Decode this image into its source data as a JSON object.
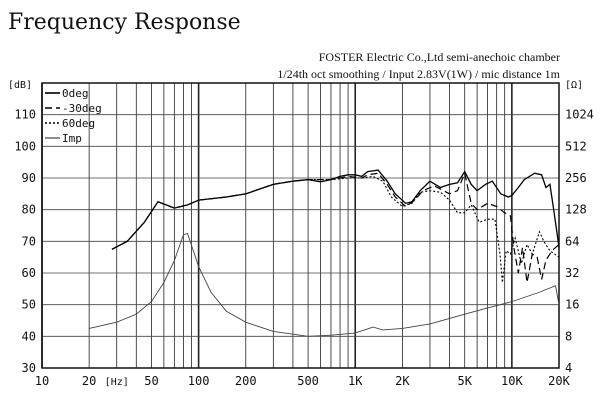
{
  "chart_data": {
    "type": "line",
    "title": "Frequency Response",
    "subtitle_lines": [
      "FOSTER Electric Co.,Ltd  semi-anechoic chamber",
      "1/24th oct smoothing / Input 2.83V(1W) / mic distance 1m"
    ],
    "xlabel": "[Hz]",
    "ylabel": "[dB]",
    "y2label": "[Ω]",
    "xscale": "log",
    "xlim": [
      10,
      20000
    ],
    "ylim": [
      30,
      120
    ],
    "y2scale": "log2",
    "y2lim": [
      4,
      2048
    ],
    "grid": true,
    "legend_placement": "top-left",
    "x_ticks": [
      {
        "v": 10,
        "l": "10"
      },
      {
        "v": 20,
        "l": "20"
      },
      {
        "v": 50,
        "l": "50"
      },
      {
        "v": 100,
        "l": "100"
      },
      {
        "v": 200,
        "l": "200"
      },
      {
        "v": 500,
        "l": "500"
      },
      {
        "v": 1000,
        "l": "1K"
      },
      {
        "v": 2000,
        "l": "2K"
      },
      {
        "v": 5000,
        "l": "5K"
      },
      {
        "v": 10000,
        "l": "10K"
      },
      {
        "v": 20000,
        "l": "20K"
      }
    ],
    "y_ticks": [
      30,
      40,
      50,
      60,
      70,
      80,
      90,
      100,
      110
    ],
    "y2_ticks": [
      {
        "v": 4,
        "l": "4"
      },
      {
        "v": 8,
        "l": "8"
      },
      {
        "v": 16,
        "l": "16"
      },
      {
        "v": 32,
        "l": "32"
      },
      {
        "v": 64,
        "l": "64"
      },
      {
        "v": 128,
        "l": "128"
      },
      {
        "v": 256,
        "l": "256"
      },
      {
        "v": 512,
        "l": "512"
      },
      {
        "v": 1024,
        "l": "1024"
      }
    ],
    "series": [
      {
        "name": "0deg",
        "style": "solid",
        "axis": "left",
        "points": [
          [
            28,
            67.5
          ],
          [
            35,
            70
          ],
          [
            45,
            76
          ],
          [
            55,
            82.5
          ],
          [
            62,
            81.5
          ],
          [
            70,
            80.5
          ],
          [
            85,
            81.5
          ],
          [
            100,
            83
          ],
          [
            150,
            84
          ],
          [
            200,
            85
          ],
          [
            300,
            88
          ],
          [
            400,
            89
          ],
          [
            500,
            89.5
          ],
          [
            600,
            88.8
          ],
          [
            700,
            89.5
          ],
          [
            800,
            90.5
          ],
          [
            900,
            91
          ],
          [
            1000,
            91
          ],
          [
            1100,
            90.5
          ],
          [
            1200,
            92
          ],
          [
            1400,
            92.5
          ],
          [
            1600,
            89
          ],
          [
            1800,
            85
          ],
          [
            2100,
            82
          ],
          [
            2300,
            82.5
          ],
          [
            2600,
            86
          ],
          [
            3000,
            89
          ],
          [
            3500,
            87
          ],
          [
            4000,
            88
          ],
          [
            4500,
            88.5
          ],
          [
            5000,
            92
          ],
          [
            5500,
            88
          ],
          [
            6000,
            86
          ],
          [
            6800,
            88
          ],
          [
            7500,
            89
          ],
          [
            8500,
            85
          ],
          [
            9500,
            84
          ],
          [
            10000,
            84.5
          ],
          [
            11000,
            87
          ],
          [
            12000,
            89.5
          ],
          [
            14000,
            91.5
          ],
          [
            15500,
            91
          ],
          [
            16500,
            87
          ],
          [
            17500,
            88
          ],
          [
            18500,
            80
          ],
          [
            19500,
            72
          ],
          [
            20000,
            68
          ]
        ]
      },
      {
        "name": "-30deg",
        "style": "dashed",
        "axis": "left",
        "points": [
          [
            28,
            67.5
          ],
          [
            35,
            70
          ],
          [
            45,
            76
          ],
          [
            55,
            82.5
          ],
          [
            62,
            81.5
          ],
          [
            70,
            80.5
          ],
          [
            85,
            81.5
          ],
          [
            100,
            83
          ],
          [
            150,
            84
          ],
          [
            200,
            85
          ],
          [
            300,
            88
          ],
          [
            400,
            89
          ],
          [
            500,
            89.5
          ],
          [
            700,
            89.5
          ],
          [
            900,
            90.5
          ],
          [
            1100,
            90
          ],
          [
            1200,
            91
          ],
          [
            1400,
            91.5
          ],
          [
            1600,
            88
          ],
          [
            1800,
            84
          ],
          [
            2100,
            81
          ],
          [
            2400,
            83
          ],
          [
            2700,
            86
          ],
          [
            3200,
            87.5
          ],
          [
            4000,
            85
          ],
          [
            4500,
            86
          ],
          [
            5000,
            91.5
          ],
          [
            5500,
            82
          ],
          [
            6000,
            80
          ],
          [
            7000,
            82
          ],
          [
            8000,
            81
          ],
          [
            9000,
            79
          ],
          [
            9800,
            78
          ],
          [
            10300,
            68
          ],
          [
            11000,
            60
          ],
          [
            11700,
            68
          ],
          [
            12500,
            57
          ],
          [
            13500,
            66
          ],
          [
            14500,
            65
          ],
          [
            15500,
            58
          ],
          [
            16500,
            64
          ],
          [
            18000,
            67
          ],
          [
            20000,
            69
          ]
        ]
      },
      {
        "name": "60deg",
        "style": "dotted",
        "axis": "left",
        "points": [
          [
            28,
            67.5
          ],
          [
            35,
            70
          ],
          [
            45,
            76
          ],
          [
            55,
            82.5
          ],
          [
            62,
            81.5
          ],
          [
            70,
            80.5
          ],
          [
            85,
            81.5
          ],
          [
            100,
            83
          ],
          [
            150,
            84
          ],
          [
            200,
            85
          ],
          [
            300,
            88
          ],
          [
            400,
            89
          ],
          [
            500,
            89.5
          ],
          [
            700,
            89.5
          ],
          [
            900,
            90
          ],
          [
            1100,
            90
          ],
          [
            1300,
            90.5
          ],
          [
            1500,
            89
          ],
          [
            1700,
            84
          ],
          [
            2000,
            81
          ],
          [
            2300,
            82
          ],
          [
            2600,
            85.5
          ],
          [
            3000,
            86
          ],
          [
            3500,
            85.5
          ],
          [
            4000,
            83
          ],
          [
            4500,
            79
          ],
          [
            5000,
            79
          ],
          [
            5500,
            81.5
          ],
          [
            6200,
            76
          ],
          [
            7000,
            77
          ],
          [
            7800,
            77
          ],
          [
            8400,
            66
          ],
          [
            8700,
            57
          ],
          [
            9200,
            67
          ],
          [
            9800,
            66
          ],
          [
            10500,
            71
          ],
          [
            11500,
            63
          ],
          [
            12500,
            69
          ],
          [
            13500,
            66
          ],
          [
            15000,
            73
          ],
          [
            16000,
            70
          ],
          [
            17500,
            67
          ],
          [
            20000,
            65
          ]
        ]
      },
      {
        "name": "Imp",
        "style": "thin",
        "axis": "right",
        "points": [
          [
            20,
            9.5
          ],
          [
            30,
            10.9
          ],
          [
            40,
            13
          ],
          [
            50,
            17.1
          ],
          [
            60,
            26
          ],
          [
            70,
            42
          ],
          [
            80,
            74
          ],
          [
            85,
            76
          ],
          [
            100,
            36.8
          ],
          [
            120,
            21
          ],
          [
            150,
            13.9
          ],
          [
            200,
            10.9
          ],
          [
            300,
            8.9
          ],
          [
            500,
            8
          ],
          [
            700,
            8.2
          ],
          [
            1000,
            8.6
          ],
          [
            1300,
            9.8
          ],
          [
            1500,
            9.2
          ],
          [
            2000,
            9.5
          ],
          [
            3000,
            10.5
          ],
          [
            5000,
            13
          ],
          [
            7000,
            14.9
          ],
          [
            10000,
            17.1
          ],
          [
            15000,
            21
          ],
          [
            19000,
            24.2
          ],
          [
            20000,
            16
          ]
        ]
      }
    ]
  }
}
